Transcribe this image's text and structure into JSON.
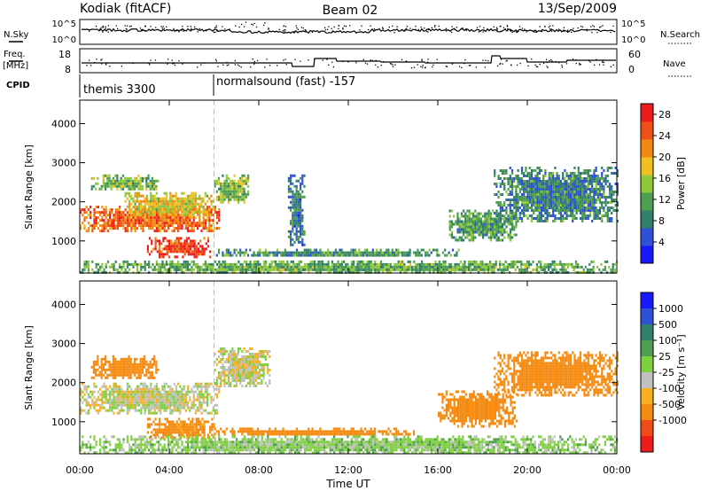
{
  "header": {
    "station": "Kodiak (fitACF)",
    "beam": "Beam 02",
    "date": "13/Sep/2009"
  },
  "top_panels": {
    "nsky": {
      "label": "N.Sky",
      "ticks": [
        "10^5",
        "10^0"
      ],
      "right_label": "N.Search",
      "right_ticks": [
        "10^5",
        "10^0"
      ]
    },
    "freq": {
      "label": "Freq.",
      "units": "[MHz]",
      "ticks": [
        "18",
        "8"
      ],
      "right_label": "Nave",
      "right_ticks": [
        "60",
        "0"
      ]
    },
    "cpid": {
      "label": "CPID",
      "programs": [
        "themis 3300",
        "normalsound (fast) -157"
      ],
      "switch_time": 6.0
    }
  },
  "colors": {
    "power": [
      "#1818ff",
      "#3050d8",
      "#2f7f6a",
      "#4f9d4f",
      "#8fc83a",
      "#f0c020",
      "#f08a10",
      "#f05018",
      "#ee1c1c"
    ],
    "velocity": [
      "#ee1c1c",
      "#f04a18",
      "#f58a10",
      "#f8b020",
      "#c0c0c0",
      "#c0c0c0",
      "#7fd040",
      "#4f9d4f",
      "#2f7f6a",
      "#3050d8",
      "#1818ff"
    ],
    "ground": "#b8b8b8"
  },
  "chart_data": [
    {
      "type": "heatmap",
      "name": "power-panel",
      "ylabel": "Slant Range [km]",
      "xlabel": "Time UT",
      "xlim": [
        0,
        24
      ],
      "ylim": [
        180,
        4600
      ],
      "yticks": [
        "1000",
        "2000",
        "3000",
        "4000"
      ],
      "yvalues": [
        1000,
        2000,
        3000,
        4000
      ],
      "xticks": [
        "00:00",
        "04:00",
        "08:00",
        "12:00",
        "16:00",
        "20:00",
        "00:00"
      ],
      "xvalues": [
        0,
        4,
        8,
        12,
        16,
        20,
        24
      ],
      "colorbar": {
        "label": "Power [dB]",
        "ticks": [
          "4",
          "8",
          "12",
          "16",
          "20",
          "24",
          "28"
        ],
        "tick_values": [
          4,
          8,
          12,
          16,
          20,
          24,
          28
        ],
        "range": [
          0,
          30
        ]
      },
      "regions": [
        {
          "t": [
            0.0,
            6.2
          ],
          "r": [
            1250,
            1900
          ],
          "value": 24
        },
        {
          "t": [
            2.0,
            6.0
          ],
          "r": [
            1650,
            2250
          ],
          "value": 18
        },
        {
          "t": [
            3.0,
            5.8
          ],
          "r": [
            600,
            1100
          ],
          "value": 27
        },
        {
          "t": [
            0.5,
            3.5
          ],
          "r": [
            2300,
            2700
          ],
          "value": 13
        },
        {
          "t": [
            6.0,
            7.5
          ],
          "r": [
            2000,
            2700
          ],
          "value": 14
        },
        {
          "t": [
            6.0,
            17.0
          ],
          "r": [
            600,
            800
          ],
          "value": 10
        },
        {
          "t": [
            16.5,
            19.5
          ],
          "r": [
            1000,
            1800
          ],
          "value": 11
        },
        {
          "t": [
            18.5,
            24.0
          ],
          "r": [
            1500,
            2900
          ],
          "value": 9
        },
        {
          "t": [
            9.3,
            10.0
          ],
          "r": [
            900,
            2700
          ],
          "value": 8
        },
        {
          "t": [
            0.0,
            24.0
          ],
          "r": [
            200,
            500
          ],
          "value": 12
        }
      ]
    },
    {
      "type": "heatmap",
      "name": "velocity-panel",
      "ylabel": "Slant Range [km]",
      "xlabel": "Time UT",
      "xlim": [
        0,
        24
      ],
      "ylim": [
        180,
        4600
      ],
      "yticks": [
        "1000",
        "2000",
        "3000",
        "4000"
      ],
      "yvalues": [
        1000,
        2000,
        3000,
        4000
      ],
      "xticks": [
        "00:00",
        "04:00",
        "08:00",
        "12:00",
        "16:00",
        "20:00",
        "00:00"
      ],
      "xvalues": [
        0,
        4,
        8,
        12,
        16,
        20,
        24
      ],
      "colorbar": {
        "label": "Velocity [m s⁻¹]",
        "ticks": [
          "1000",
          "500",
          "100",
          "25",
          "-25",
          "-100",
          "-500",
          "-1000"
        ],
        "tick_values": [
          1000,
          500,
          100,
          25,
          -25,
          -100,
          -500,
          -1000
        ]
      },
      "regions": [
        {
          "t": [
            0.0,
            6.2
          ],
          "r": [
            1250,
            2000
          ],
          "value": 0
        },
        {
          "t": [
            3.0,
            6.0
          ],
          "r": [
            600,
            1100
          ],
          "value": -150
        },
        {
          "t": [
            0.5,
            3.5
          ],
          "r": [
            2100,
            2700
          ],
          "value": -200
        },
        {
          "t": [
            6.0,
            8.5
          ],
          "r": [
            1900,
            2900
          ],
          "value": 0
        },
        {
          "t": [
            6.0,
            15.0
          ],
          "r": [
            650,
            850
          ],
          "value": -300
        },
        {
          "t": [
            16.0,
            19.5
          ],
          "r": [
            900,
            1800
          ],
          "value": -300
        },
        {
          "t": [
            18.5,
            24.0
          ],
          "r": [
            1700,
            2800
          ],
          "value": -200
        },
        {
          "t": [
            0.0,
            24.0
          ],
          "r": [
            200,
            650
          ],
          "value": 60
        }
      ]
    }
  ]
}
